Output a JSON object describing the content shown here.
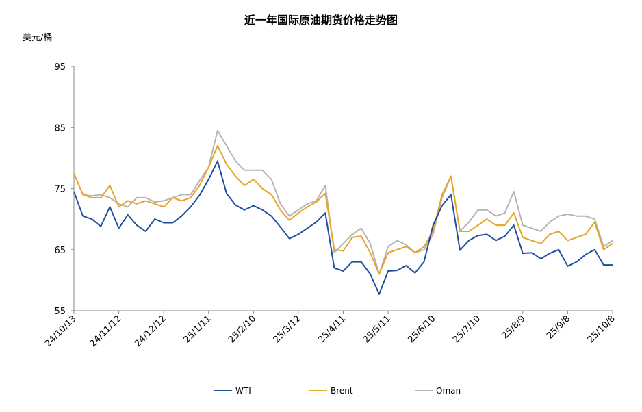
{
  "chart_data": {
    "type": "line",
    "title": "近一年国际原油期货价格走势图",
    "ylabel": "美元/桶",
    "xlabel": "",
    "ylim": [
      55,
      95
    ],
    "yticks": [
      55,
      65,
      75,
      85,
      95
    ],
    "grid": false,
    "legend": "bottom",
    "xtick_labels": [
      "24/10/13",
      "24/11/12",
      "24/12/12",
      "25/1/11",
      "25/2/10",
      "25/3/12",
      "25/4/11",
      "25/5/11",
      "25/6/10",
      "25/7/10",
      "25/8/9",
      "25/9/8",
      "25/10/8"
    ],
    "x": [
      "2024-10-13",
      "2024-10-19",
      "2024-10-25",
      "2024-10-31",
      "2024-11-06",
      "2024-11-12",
      "2024-11-18",
      "2024-11-24",
      "2024-11-30",
      "2024-12-06",
      "2024-12-12",
      "2024-12-18",
      "2024-12-24",
      "2024-12-30",
      "2025-01-05",
      "2025-01-11",
      "2025-01-17",
      "2025-01-23",
      "2025-01-29",
      "2025-02-04",
      "2025-02-10",
      "2025-02-16",
      "2025-02-22",
      "2025-02-28",
      "2025-03-06",
      "2025-03-12",
      "2025-03-18",
      "2025-03-24",
      "2025-03-30",
      "2025-04-05",
      "2025-04-11",
      "2025-04-17",
      "2025-04-23",
      "2025-04-29",
      "2025-05-05",
      "2025-05-11",
      "2025-05-17",
      "2025-05-23",
      "2025-05-29",
      "2025-06-04",
      "2025-06-10",
      "2025-06-16",
      "2025-06-22",
      "2025-06-28",
      "2025-07-04",
      "2025-07-10",
      "2025-07-16",
      "2025-07-22",
      "2025-07-28",
      "2025-08-03",
      "2025-08-09",
      "2025-08-15",
      "2025-08-21",
      "2025-08-27",
      "2025-09-02",
      "2025-09-08",
      "2025-09-14",
      "2025-09-20",
      "2025-09-26",
      "2025-10-02",
      "2025-10-08"
    ],
    "series": [
      {
        "name": "WTI",
        "color": "#1f4e9e",
        "values": [
          74.5,
          70.5,
          70,
          68.8,
          72,
          68.5,
          70.7,
          69,
          68,
          70,
          69.4,
          69.4,
          70.5,
          72,
          73.9,
          76.5,
          79.5,
          74.2,
          72.3,
          71.5,
          72.2,
          71.5,
          70.5,
          68.7,
          66.8,
          67.5,
          68.5,
          69.5,
          71,
          62,
          61.5,
          63,
          63,
          61,
          57.7,
          61.5,
          61.6,
          62.4,
          61.2,
          63,
          69,
          72.2,
          74,
          64.9,
          66.5,
          67.3,
          67.5,
          66.5,
          67.2,
          69,
          64.4,
          64.5,
          63.5,
          64.4,
          65,
          62.3,
          63,
          64.2,
          65,
          62.5,
          62.5
        ]
      },
      {
        "name": "Brent",
        "color": "#e8a523",
        "values": [
          77.5,
          74,
          73.5,
          73.5,
          75.5,
          72,
          73,
          72.5,
          73,
          72.5,
          72,
          73.5,
          73,
          73.5,
          75.5,
          78.5,
          82,
          79,
          77,
          75.5,
          76.5,
          75,
          74,
          71.5,
          69.8,
          71,
          72,
          72.8,
          74.2,
          65,
          64.8,
          67,
          67.2,
          64.5,
          61,
          64.5,
          65,
          65.5,
          64.5,
          65.5,
          68,
          74,
          77,
          68,
          68,
          69,
          70,
          69,
          69,
          71,
          67,
          66.5,
          66,
          67.5,
          68,
          66.5,
          67,
          67.5,
          69.5,
          65,
          66
        ]
      },
      {
        "name": "Oman",
        "color": "#b4b4b4",
        "values": [
          77.5,
          74,
          73.8,
          74,
          73.5,
          72.5,
          72,
          73.5,
          73.5,
          72.8,
          73,
          73.5,
          74,
          74,
          76.3,
          78.5,
          84.5,
          82,
          79.5,
          78,
          78,
          78,
          76.5,
          72.5,
          70.5,
          71.5,
          72.5,
          73,
          75.5,
          64.5,
          66,
          67.5,
          68.5,
          66,
          61,
          65.5,
          66.5,
          65.8,
          64.5,
          65,
          67.5,
          73.5,
          77,
          68,
          69.5,
          71.5,
          71.5,
          70.5,
          71,
          74.5,
          69,
          68.5,
          68,
          69.5,
          70.5,
          70.8,
          70.5,
          70.5,
          70,
          65.5,
          66.5
        ]
      }
    ]
  }
}
